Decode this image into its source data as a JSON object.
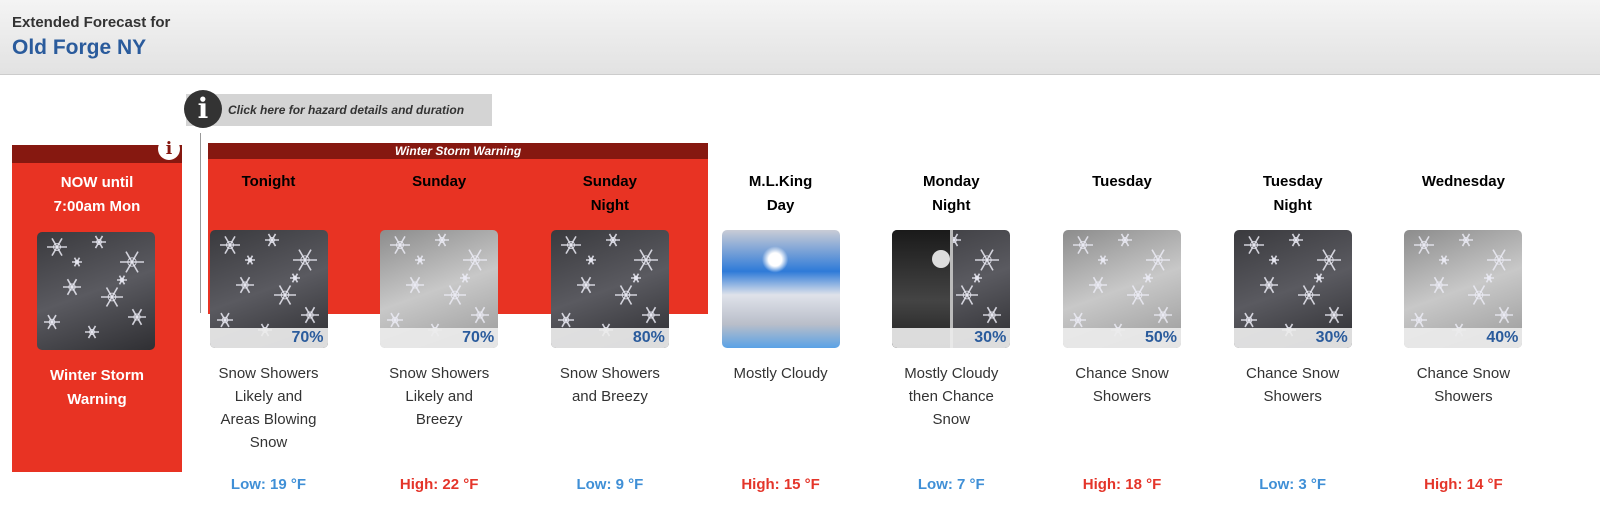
{
  "header": {
    "subtitle": "Extended Forecast for",
    "location": "Old Forge NY"
  },
  "hazard_link": "Click here for hazard details and duration",
  "hazard_band": "Winter Storm Warning",
  "now": {
    "line1": "NOW until",
    "line2": "7:00am Mon",
    "hazard1": "Winter Storm",
    "hazard2": "Warning",
    "icon": "snow-dark"
  },
  "periods": [
    {
      "name": [
        "Tonight",
        ""
      ],
      "icon": "snow-dark",
      "pop": "70%",
      "desc": [
        "Snow Showers",
        "Likely and",
        "Areas Blowing",
        "Snow"
      ],
      "temp": "Low: 19 °F",
      "type": "lo"
    },
    {
      "name": [
        "Sunday",
        ""
      ],
      "icon": "snow-light",
      "pop": "70%",
      "desc": [
        "Snow Showers",
        "Likely and",
        "Breezy"
      ],
      "temp": "High: 22 °F",
      "type": "hi"
    },
    {
      "name": [
        "Sunday",
        "Night"
      ],
      "icon": "snow-dark",
      "pop": "80%",
      "desc": [
        "Snow Showers",
        "and Breezy"
      ],
      "temp": "Low: 9 °F",
      "type": "lo"
    },
    {
      "name": [
        "M.L.King",
        "Day"
      ],
      "icon": "mostly-cloudy",
      "pop": "",
      "desc": [
        "Mostly Cloudy"
      ],
      "temp": "High: 15 °F",
      "type": "hi"
    },
    {
      "name": [
        "Monday",
        "Night"
      ],
      "icon": "cloudy-night-then-snow",
      "pop": "30%",
      "desc": [
        "Mostly Cloudy",
        "then Chance",
        "Snow"
      ],
      "temp": "Low: 7 °F",
      "type": "lo"
    },
    {
      "name": [
        "Tuesday",
        ""
      ],
      "icon": "snow-light",
      "pop": "50%",
      "desc": [
        "Chance Snow",
        "Showers"
      ],
      "temp": "High: 18 °F",
      "type": "hi"
    },
    {
      "name": [
        "Tuesday",
        "Night"
      ],
      "icon": "snow-dark",
      "pop": "30%",
      "desc": [
        "Chance Snow",
        "Showers"
      ],
      "temp": "Low: 3 °F",
      "type": "lo"
    },
    {
      "name": [
        "Wednesday",
        ""
      ],
      "icon": "snow-light",
      "pop": "40%",
      "desc": [
        "Chance Snow",
        "Showers"
      ],
      "temp": "High: 14 °F",
      "type": "hi"
    }
  ],
  "colors": {
    "warning_red": "#e83323",
    "warning_dark": "#861810",
    "low": "#3f8fd6",
    "high": "#e4352a",
    "title": "#2a5b9c"
  }
}
